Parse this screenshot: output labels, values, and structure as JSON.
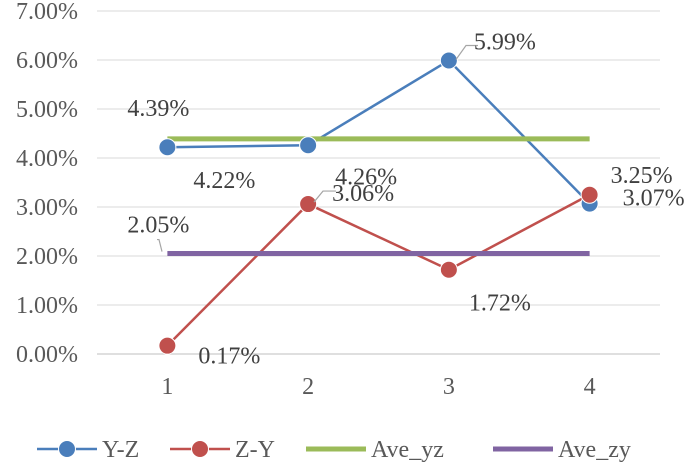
{
  "chart_data": {
    "type": "line",
    "title": "",
    "xlabel": "",
    "ylabel": "",
    "categories": [
      "1",
      "2",
      "3",
      "4"
    ],
    "ylim": [
      0,
      7
    ],
    "y_ticks": [
      "0.00%",
      "1.00%",
      "2.00%",
      "3.00%",
      "4.00%",
      "5.00%",
      "6.00%",
      "7.00%"
    ],
    "grid": "horizontal",
    "legend_position": "bottom",
    "series": [
      {
        "name": "Y-Z",
        "values": [
          4.22,
          4.26,
          5.99,
          3.07
        ],
        "labels": [
          "4.22%",
          "4.26%",
          "5.99%",
          "3.07%"
        ],
        "color": "#4a7ebb",
        "markers": true
      },
      {
        "name": "Z-Y",
        "values": [
          0.17,
          3.06,
          1.72,
          3.25
        ],
        "labels": [
          "0.17%",
          "3.06%",
          "1.72%",
          "3.25%"
        ],
        "color": "#c0504d",
        "markers": true
      },
      {
        "name": "Ave_yz",
        "values": [
          4.39,
          4.39,
          4.39,
          4.39
        ],
        "labels": [
          "4.39%"
        ],
        "color": "#9bbb59",
        "markers": false
      },
      {
        "name": "Ave_zy",
        "values": [
          2.05,
          2.05,
          2.05,
          2.05
        ],
        "labels": [
          "2.05%"
        ],
        "color": "#8064a2",
        "markers": false
      }
    ]
  }
}
